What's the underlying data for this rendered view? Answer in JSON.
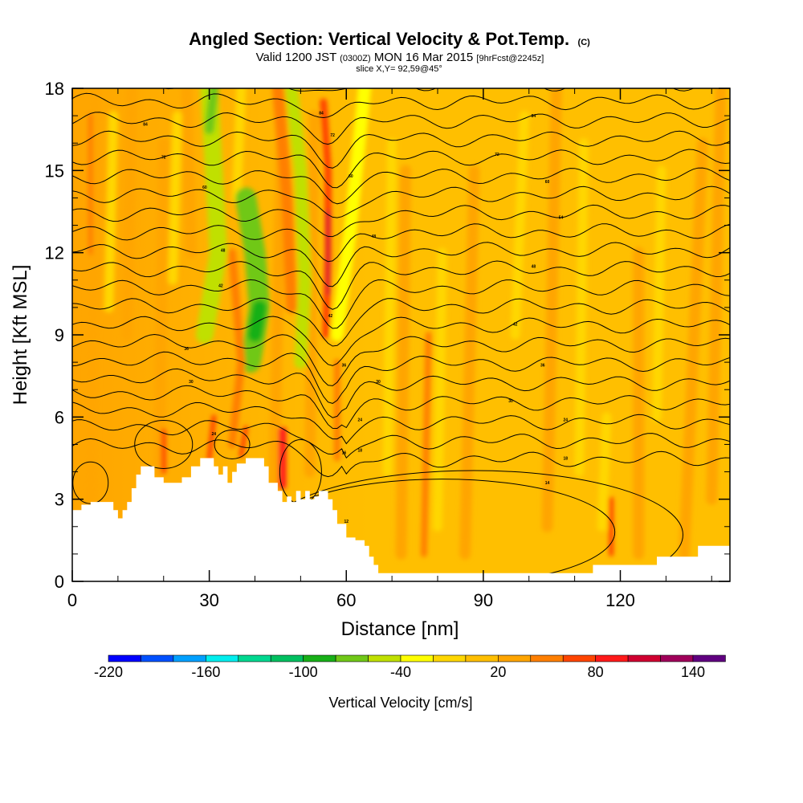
{
  "chart_data": {
    "type": "heatmap",
    "title": "Angled Section: Vertical Velocity & Pot.Temp.",
    "title_unit": "(C)",
    "subtitle_pre": "Valid 1200 JST",
    "subtitle_z": "(0300Z)",
    "subtitle_mid": "MON 16 Mar 2015",
    "subtitle_fcst": "[9hrFcst@2245z]",
    "slice": "slice X,Y= 92,59@45°",
    "xlabel": "Distance [nm]",
    "ylabel": "Height [Kft MSL]",
    "xlim": [
      0,
      144
    ],
    "ylim": [
      0,
      18
    ],
    "x_ticks": [
      "0",
      "30",
      "60",
      "90",
      "120"
    ],
    "x_tick_values": [
      0,
      30,
      60,
      90,
      120
    ],
    "y_ticks": [
      "0",
      "3",
      "6",
      "9",
      "12",
      "15",
      "18"
    ],
    "y_tick_values": [
      0,
      3,
      6,
      9,
      12,
      15,
      18
    ],
    "colorbar": {
      "label": "Vertical Velocity [cm/s]",
      "tick_labels": [
        "-220",
        "-160",
        "-100",
        "-40",
        "20",
        "80",
        "140"
      ],
      "tick_values": [
        -220,
        -160,
        -100,
        -40,
        20,
        80,
        140
      ],
      "bins": [
        -220,
        -200,
        -180,
        -160,
        -140,
        -120,
        -100,
        -80,
        -60,
        -40,
        -20,
        0,
        20,
        40,
        60,
        80,
        100,
        120,
        140
      ],
      "colors": [
        "#0000ff",
        "#0050ff",
        "#00a0ff",
        "#00eeee",
        "#00d890",
        "#00c060",
        "#18b018",
        "#70c818",
        "#c0e000",
        "#ffff00",
        "#ffd700",
        "#ffbf00",
        "#ffa500",
        "#ff7f00",
        "#ff4500",
        "#ff1a1a",
        "#d00030",
        "#a0005a",
        "#600080"
      ]
    },
    "terrain_profile": [
      [
        0,
        2.6
      ],
      [
        2,
        2.8
      ],
      [
        4,
        2.9
      ],
      [
        8,
        2.9
      ],
      [
        9,
        2.6
      ],
      [
        10,
        2.3
      ],
      [
        11,
        2.6
      ],
      [
        12,
        2.9
      ],
      [
        13,
        3.4
      ],
      [
        14,
        3.9
      ],
      [
        15,
        4.2
      ],
      [
        17,
        4.2
      ],
      [
        18,
        3.8
      ],
      [
        20,
        3.6
      ],
      [
        22,
        3.6
      ],
      [
        24,
        3.8
      ],
      [
        26,
        4.2
      ],
      [
        28,
        4.5
      ],
      [
        30,
        4.5
      ],
      [
        31,
        4.2
      ],
      [
        32,
        3.9
      ],
      [
        33,
        4.2
      ],
      [
        34,
        3.6
      ],
      [
        35,
        4.0
      ],
      [
        36,
        4.3
      ],
      [
        38,
        4.5
      ],
      [
        40,
        4.5
      ],
      [
        42,
        4.2
      ],
      [
        43,
        3.6
      ],
      [
        45,
        3.3
      ],
      [
        46,
        2.9
      ],
      [
        47,
        3.1
      ],
      [
        48,
        2.9
      ],
      [
        49,
        3.3
      ],
      [
        50,
        3.0
      ],
      [
        51,
        3.3
      ],
      [
        52,
        3.0
      ],
      [
        53,
        3.1
      ],
      [
        54,
        3.3
      ],
      [
        56,
        3.0
      ],
      [
        57,
        2.6
      ],
      [
        58,
        2.1
      ],
      [
        60,
        1.6
      ],
      [
        62,
        1.5
      ],
      [
        64,
        1.3
      ],
      [
        65,
        0.9
      ],
      [
        66,
        0.6
      ],
      [
        67,
        0.3
      ],
      [
        90,
        0.3
      ],
      [
        113,
        0.3
      ],
      [
        114,
        0.6
      ],
      [
        120,
        0.6
      ],
      [
        128,
        0.9
      ],
      [
        134,
        0.9
      ],
      [
        137,
        1.3
      ],
      [
        144,
        1.3
      ]
    ],
    "contour_labels": [
      {
        "x": 16,
        "y": 16.7,
        "t": "84"
      },
      {
        "x": 20,
        "y": 15.5,
        "t": "72"
      },
      {
        "x": 29,
        "y": 14.4,
        "t": "60"
      },
      {
        "x": 33,
        "y": 12.1,
        "t": "48"
      },
      {
        "x": 32.5,
        "y": 10.8,
        "t": "42"
      },
      {
        "x": 25,
        "y": 8.5,
        "t": "36"
      },
      {
        "x": 26,
        "y": 7.3,
        "t": "30"
      },
      {
        "x": 31,
        "y": 5.4,
        "t": "24"
      },
      {
        "x": 54.5,
        "y": 17.1,
        "t": "84"
      },
      {
        "x": 57,
        "y": 16.3,
        "t": "72"
      },
      {
        "x": 61,
        "y": 14.8,
        "t": "60"
      },
      {
        "x": 66,
        "y": 12.6,
        "t": "48"
      },
      {
        "x": 56.5,
        "y": 9.7,
        "t": "42"
      },
      {
        "x": 59.5,
        "y": 7.9,
        "t": "36"
      },
      {
        "x": 67,
        "y": 7.3,
        "t": "30"
      },
      {
        "x": 63,
        "y": 5.9,
        "t": "24"
      },
      {
        "x": 63,
        "y": 4.8,
        "t": "18"
      },
      {
        "x": 59.5,
        "y": 4.7,
        "t": "16"
      },
      {
        "x": 60,
        "y": 2.2,
        "t": "12"
      },
      {
        "x": 101,
        "y": 17.0,
        "t": "84"
      },
      {
        "x": 93,
        "y": 15.6,
        "t": "72"
      },
      {
        "x": 104,
        "y": 14.6,
        "t": "60"
      },
      {
        "x": 107,
        "y": 13.3,
        "t": "54"
      },
      {
        "x": 101,
        "y": 11.5,
        "t": "48"
      },
      {
        "x": 97,
        "y": 9.4,
        "t": "42"
      },
      {
        "x": 103,
        "y": 7.9,
        "t": "36"
      },
      {
        "x": 96,
        "y": 6.6,
        "t": "30"
      },
      {
        "x": 108,
        "y": 5.9,
        "t": "24"
      },
      {
        "x": 108,
        "y": 4.5,
        "t": "18"
      },
      {
        "x": 104,
        "y": 3.6,
        "t": "14"
      }
    ]
  }
}
